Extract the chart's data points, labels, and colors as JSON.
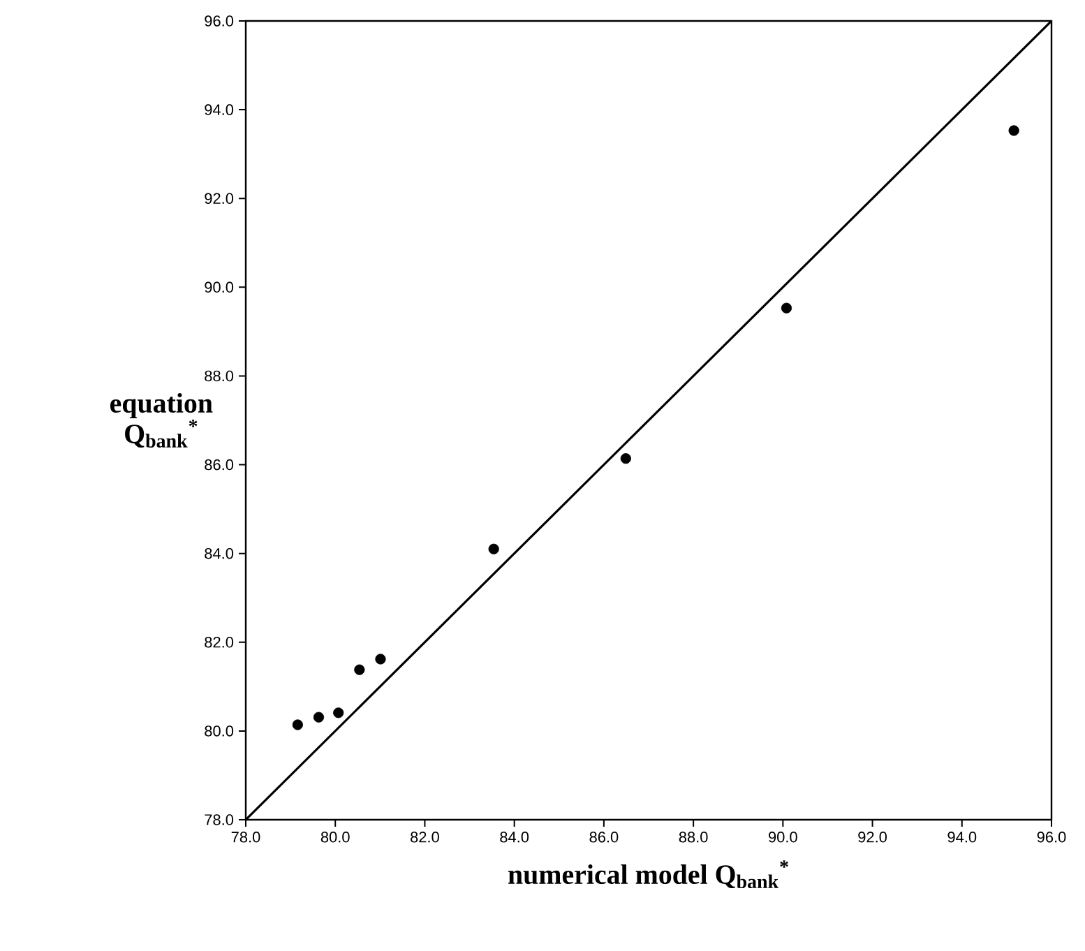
{
  "chart_data": {
    "type": "scatter",
    "xlabel": "numerical model Q$_{bank}$$^{*}$",
    "ylabel": "equation Q$_{bank}$$^{*}$",
    "xlim": [
      78,
      96
    ],
    "ylim": [
      78,
      96
    ],
    "xticks": [
      {
        "value": 78,
        "label": "78.0"
      },
      {
        "value": 80,
        "label": "80.0"
      },
      {
        "value": 82,
        "label": "82.0"
      },
      {
        "value": 84,
        "label": "84.0"
      },
      {
        "value": 86,
        "label": "86.0"
      },
      {
        "value": 88,
        "label": "88.0"
      },
      {
        "value": 90,
        "label": "90.0"
      },
      {
        "value": 92,
        "label": "92.0"
      },
      {
        "value": 94,
        "label": "94.0"
      },
      {
        "value": 96,
        "label": "96.0"
      }
    ],
    "yticks": [
      {
        "value": 78,
        "label": "78.0"
      },
      {
        "value": 80,
        "label": "80.0"
      },
      {
        "value": 82,
        "label": "82.0"
      },
      {
        "value": 84,
        "label": "84.0"
      },
      {
        "value": 86,
        "label": "86.0"
      },
      {
        "value": 88,
        "label": "88.0"
      },
      {
        "value": 90,
        "label": "90.0"
      },
      {
        "value": 92,
        "label": "92.0"
      },
      {
        "value": 94,
        "label": "94.0"
      },
      {
        "value": 96,
        "label": "96.0"
      }
    ],
    "grid": false,
    "series": [
      {
        "marker": "circle",
        "color": "#000000",
        "x": [
          79.16,
          79.63,
          80.07,
          80.54,
          81.01,
          83.54,
          86.49,
          90.08,
          95.16
        ],
        "values": [
          80.14,
          80.31,
          80.41,
          81.38,
          81.62,
          84.1,
          86.14,
          89.53,
          93.53
        ]
      },
      {
        "type": "line",
        "marker": "none",
        "color": "#000000",
        "x": [
          78,
          96
        ],
        "values": [
          78,
          96
        ]
      }
    ]
  }
}
